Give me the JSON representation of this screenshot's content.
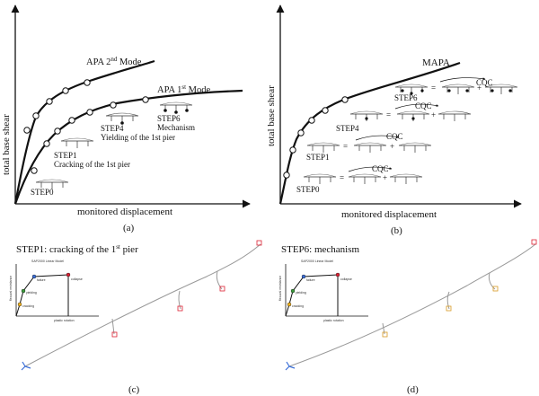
{
  "panel_a": {
    "ylabel": "total base shear",
    "xlabel": "monitored displacement",
    "caption": "(a)",
    "mode2": "APA 2",
    "mode2_sup": "nd",
    "mode2_tail": " Mode",
    "mode1": "APA 1",
    "mode1_sup": "st",
    "mode1_tail": " Mode",
    "step0": "STEP0",
    "step1": "STEP1",
    "step1_desc": "Cracking of the 1st pier",
    "step4": "STEP4",
    "step4_desc": "Yielding of the 1st pier",
    "step6": "STEP6",
    "step6_desc": "Mechanism"
  },
  "panel_b": {
    "ylabel": "total base shear",
    "xlabel": "monitored displacement",
    "caption": "(b)",
    "curve": "MAPA",
    "step0": "STEP0",
    "step1": "STEP1",
    "step4": "STEP4",
    "step6": "STEP6",
    "cqc": "CQC",
    "eq": "=",
    "plus": "+"
  },
  "panel_c": {
    "title": "STEP1: cracking of the 1",
    "title_sup": "st",
    "title_tail": " pier",
    "caption": "(c)",
    "inset_title": "SAP2000 Linear Model",
    "inset_ylabel": "flexural resistance",
    "inset_xlabel": "plastic rotation",
    "inset_points": [
      "cracking",
      "yielding",
      "failure",
      "collapse"
    ]
  },
  "panel_d": {
    "title": "STEP6: mechanism",
    "caption": "(d)",
    "inset_title": "SAP2000 Linear Model",
    "inset_ylabel": "flexural resistance",
    "inset_xlabel": "plastic rotation",
    "inset_points": [
      "cracking",
      "yielding",
      "failure",
      "collapse"
    ]
  }
}
